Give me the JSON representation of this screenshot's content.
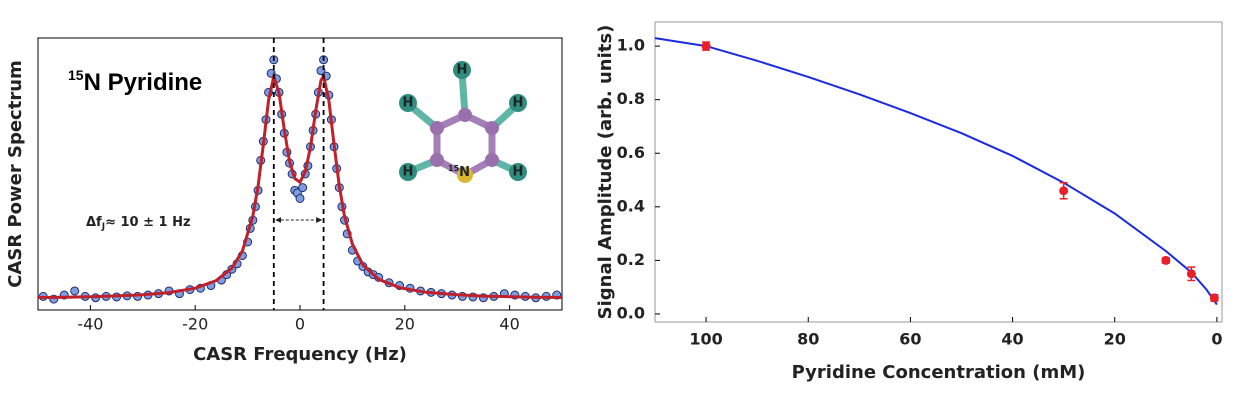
{
  "chart_data": [
    {
      "type": "scatter",
      "title_superscript": "15",
      "title": "N Pyridine",
      "xlabel": "CASR Frequency (Hz)",
      "ylabel": "CASR Power Spectrum",
      "annotation": {
        "delta": "Δf",
        "subscript": "J",
        "text": "≈ 10 ± 1 Hz"
      },
      "molecule": {
        "hydrogens": [
          "H",
          "H",
          "H",
          "H",
          "H"
        ],
        "nitrogen_superscript": "15",
        "nitrogen": "N"
      },
      "xlim": [
        -50,
        50
      ],
      "ylim": [
        0,
        1
      ],
      "xticks": [
        -40,
        -20,
        0,
        20,
        40
      ],
      "vlines": [
        -5,
        4.5
      ],
      "points": {
        "color": "#7d9de0",
        "x": [
          -49,
          -47,
          -45,
          -43,
          -41,
          -39,
          -37,
          -35,
          -33,
          -31,
          -29,
          -27,
          -25,
          -23,
          -21,
          -19,
          -17,
          -15,
          -14,
          -13,
          -12,
          -11,
          -10,
          -9.5,
          -9,
          -8.5,
          -8,
          -7.5,
          -7,
          -6.5,
          -6,
          -5.5,
          -5,
          -4.5,
          -4,
          -3.5,
          -3,
          -2.5,
          -2,
          -1.5,
          -1,
          -0.5,
          0,
          0.5,
          1,
          1.5,
          2,
          2.5,
          3,
          3.5,
          4,
          4.5,
          5,
          5.5,
          6,
          6.5,
          7,
          7.5,
          8,
          8.5,
          9,
          10,
          11,
          12,
          13,
          14,
          15,
          17,
          19,
          21,
          23,
          25,
          27,
          29,
          31,
          33,
          35,
          37,
          39,
          41,
          43,
          45,
          47,
          49
        ],
        "y": [
          0.05,
          0.04,
          0.055,
          0.07,
          0.05,
          0.045,
          0.05,
          0.048,
          0.052,
          0.05,
          0.055,
          0.06,
          0.07,
          0.06,
          0.075,
          0.08,
          0.09,
          0.11,
          0.13,
          0.15,
          0.17,
          0.2,
          0.25,
          0.3,
          0.33,
          0.38,
          0.44,
          0.55,
          0.62,
          0.7,
          0.8,
          0.87,
          0.92,
          0.85,
          0.8,
          0.72,
          0.65,
          0.58,
          0.54,
          0.5,
          0.44,
          0.43,
          0.41,
          0.45,
          0.5,
          0.53,
          0.6,
          0.66,
          0.72,
          0.8,
          0.88,
          0.92,
          0.86,
          0.79,
          0.7,
          0.6,
          0.52,
          0.45,
          0.38,
          0.33,
          0.28,
          0.22,
          0.18,
          0.16,
          0.14,
          0.13,
          0.12,
          0.1,
          0.09,
          0.08,
          0.07,
          0.065,
          0.06,
          0.055,
          0.05,
          0.048,
          0.045,
          0.05,
          0.06,
          0.055,
          0.05,
          0.045,
          0.05,
          0.055
        ]
      },
      "fit": {
        "color": "#c0202a",
        "x": [
          -50,
          -45,
          -40,
          -35,
          -30,
          -25,
          -20,
          -16,
          -13,
          -11,
          -9,
          -8,
          -7,
          -6,
          -5,
          -4,
          -3,
          -2,
          -1,
          0,
          1,
          2,
          3,
          4,
          4.5,
          5.5,
          6.5,
          7.5,
          8.5,
          10,
          12,
          15,
          19,
          24,
          30,
          35,
          40,
          45,
          50
        ],
        "y": [
          0.046,
          0.047,
          0.049,
          0.052,
          0.056,
          0.064,
          0.08,
          0.108,
          0.154,
          0.217,
          0.345,
          0.456,
          0.607,
          0.772,
          0.858,
          0.798,
          0.663,
          0.547,
          0.483,
          0.47,
          0.508,
          0.599,
          0.732,
          0.845,
          0.858,
          0.772,
          0.607,
          0.456,
          0.345,
          0.242,
          0.166,
          0.113,
          0.082,
          0.065,
          0.056,
          0.051,
          0.049,
          0.047,
          0.046
        ]
      }
    },
    {
      "type": "errorbar",
      "xlabel": "Pyridine Concentration (mM)",
      "ylabel": "Signal Amplitude (arb. units)",
      "xlim": [
        110,
        -1
      ],
      "ylim": [
        -0.03,
        1.09
      ],
      "xticks": [
        100,
        80,
        60,
        40,
        20,
        0
      ],
      "yticks": [
        {
          "value": 0,
          "label": "0.0"
        },
        0.2,
        0.4,
        0.6,
        0.8,
        {
          "value": 1,
          "label": "1.0"
        }
      ],
      "points": {
        "color": "#e8202a",
        "x": [
          100,
          30,
          10,
          5,
          0.5
        ],
        "y": [
          1.0,
          0.46,
          0.2,
          0.15,
          0.06
        ],
        "errors": [
          0.015,
          0.03,
          0.01,
          0.025,
          0.012
        ]
      },
      "fit": {
        "color": "#1a2be0",
        "x": [
          110,
          100,
          90,
          80,
          70,
          60,
          50,
          40,
          30,
          20,
          10,
          5,
          2,
          0
        ],
        "y": [
          1.03,
          1.0,
          0.945,
          0.885,
          0.82,
          0.75,
          0.675,
          0.59,
          0.49,
          0.375,
          0.235,
          0.155,
          0.09,
          0.035
        ]
      }
    }
  ]
}
